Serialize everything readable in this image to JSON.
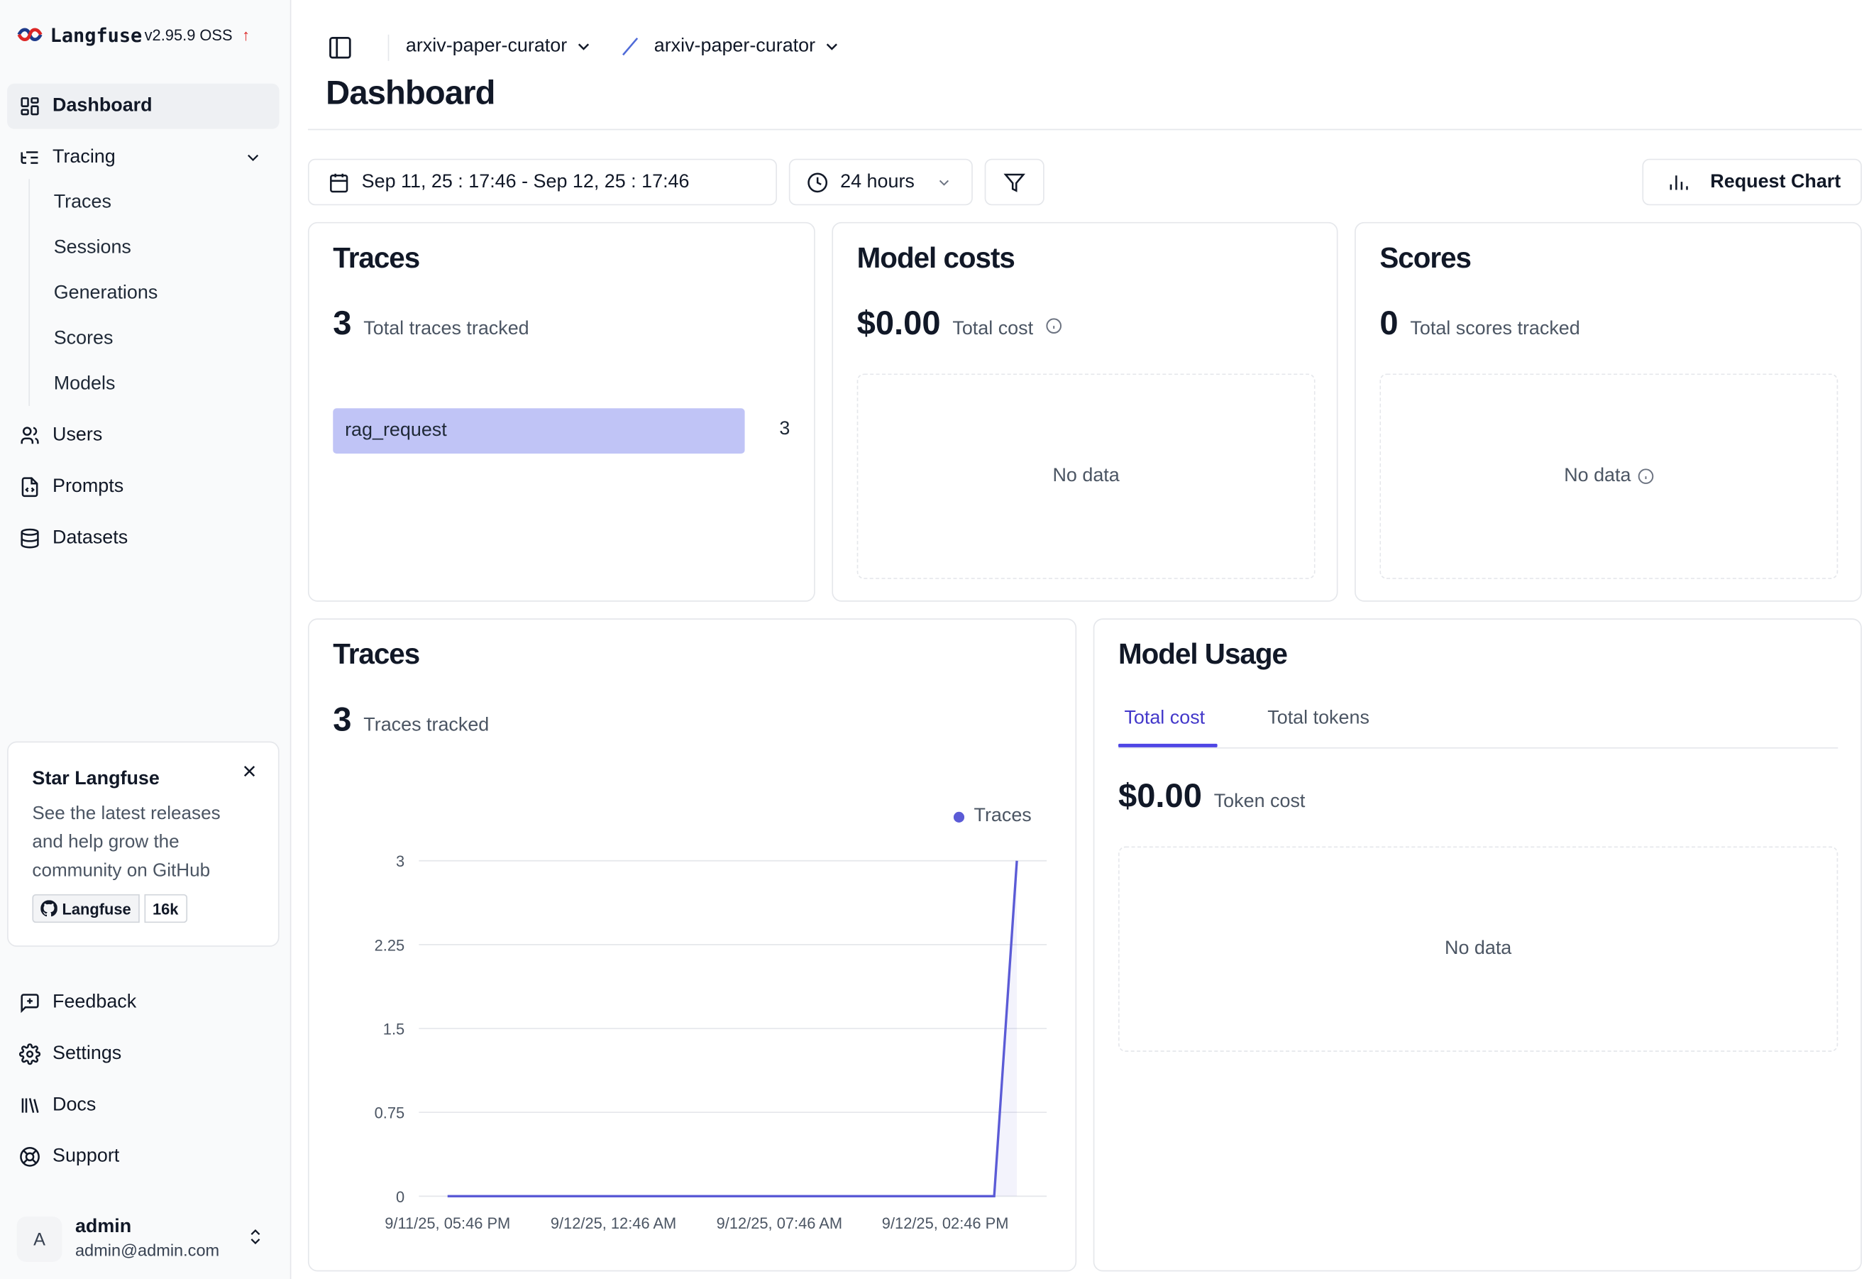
{
  "app": {
    "name": "Langfuse",
    "version": "v2.95.9 OSS",
    "update_icon": "arrow-up-icon"
  },
  "sidebar": {
    "dashboard": "Dashboard",
    "tracing": "Tracing",
    "tracing_sub": [
      "Traces",
      "Sessions",
      "Generations",
      "Scores",
      "Models"
    ],
    "users": "Users",
    "prompts": "Prompts",
    "datasets": "Datasets",
    "feedback": "Feedback",
    "settings": "Settings",
    "docs": "Docs",
    "support": "Support"
  },
  "star_card": {
    "title": "Star Langfuse",
    "description": "See the latest releases and help grow the community on GitHub",
    "github_label": "Langfuse",
    "github_stars": "16k"
  },
  "user": {
    "avatar_initial": "A",
    "name": "admin",
    "email": "admin@admin.com"
  },
  "header": {
    "org": "arxiv-paper-curator",
    "project": "arxiv-paper-curator",
    "title": "Dashboard"
  },
  "toolbar": {
    "date_range": "Sep 11, 25 : 17:46 - Sep 12, 25 : 17:46",
    "period": "24 hours",
    "request_chart": "Request Chart"
  },
  "cards": {
    "traces": {
      "title": "Traces",
      "count": "3",
      "label": "Total traces tracked",
      "rows": [
        {
          "name": "rag_request",
          "value": "3",
          "fraction": 1.0
        }
      ]
    },
    "model_costs": {
      "title": "Model costs",
      "amount": "$0.00",
      "label": "Total cost",
      "empty": "No data"
    },
    "scores": {
      "title": "Scores",
      "count": "0",
      "label": "Total scores tracked",
      "empty": "No data"
    },
    "traces_chart": {
      "title": "Traces",
      "count": "3",
      "label": "Traces tracked"
    },
    "model_usage": {
      "title": "Model Usage",
      "tabs": [
        "Total cost",
        "Total tokens"
      ],
      "active_tab": "Total cost",
      "amount": "$0.00",
      "label": "Token cost",
      "empty": "No data"
    }
  },
  "chart_data": {
    "type": "area",
    "series": [
      {
        "name": "Traces",
        "color": "#5b5bd6",
        "x": [
          "9/11/25, 05:46 PM",
          "9/12/25, 04:46 PM",
          "9/12/25, 05:46 PM"
        ],
        "values": [
          0,
          0,
          3
        ]
      }
    ],
    "x_ticks": [
      "9/11/25, 05:46 PM",
      "9/12/25, 12:46 AM",
      "9/12/25, 07:46 AM",
      "9/12/25, 02:46 PM"
    ],
    "y_ticks": [
      "0",
      "0.75",
      "1.5",
      "2.25",
      "3"
    ],
    "ylim": [
      0,
      3
    ],
    "grid": true,
    "legend": "top-right"
  }
}
